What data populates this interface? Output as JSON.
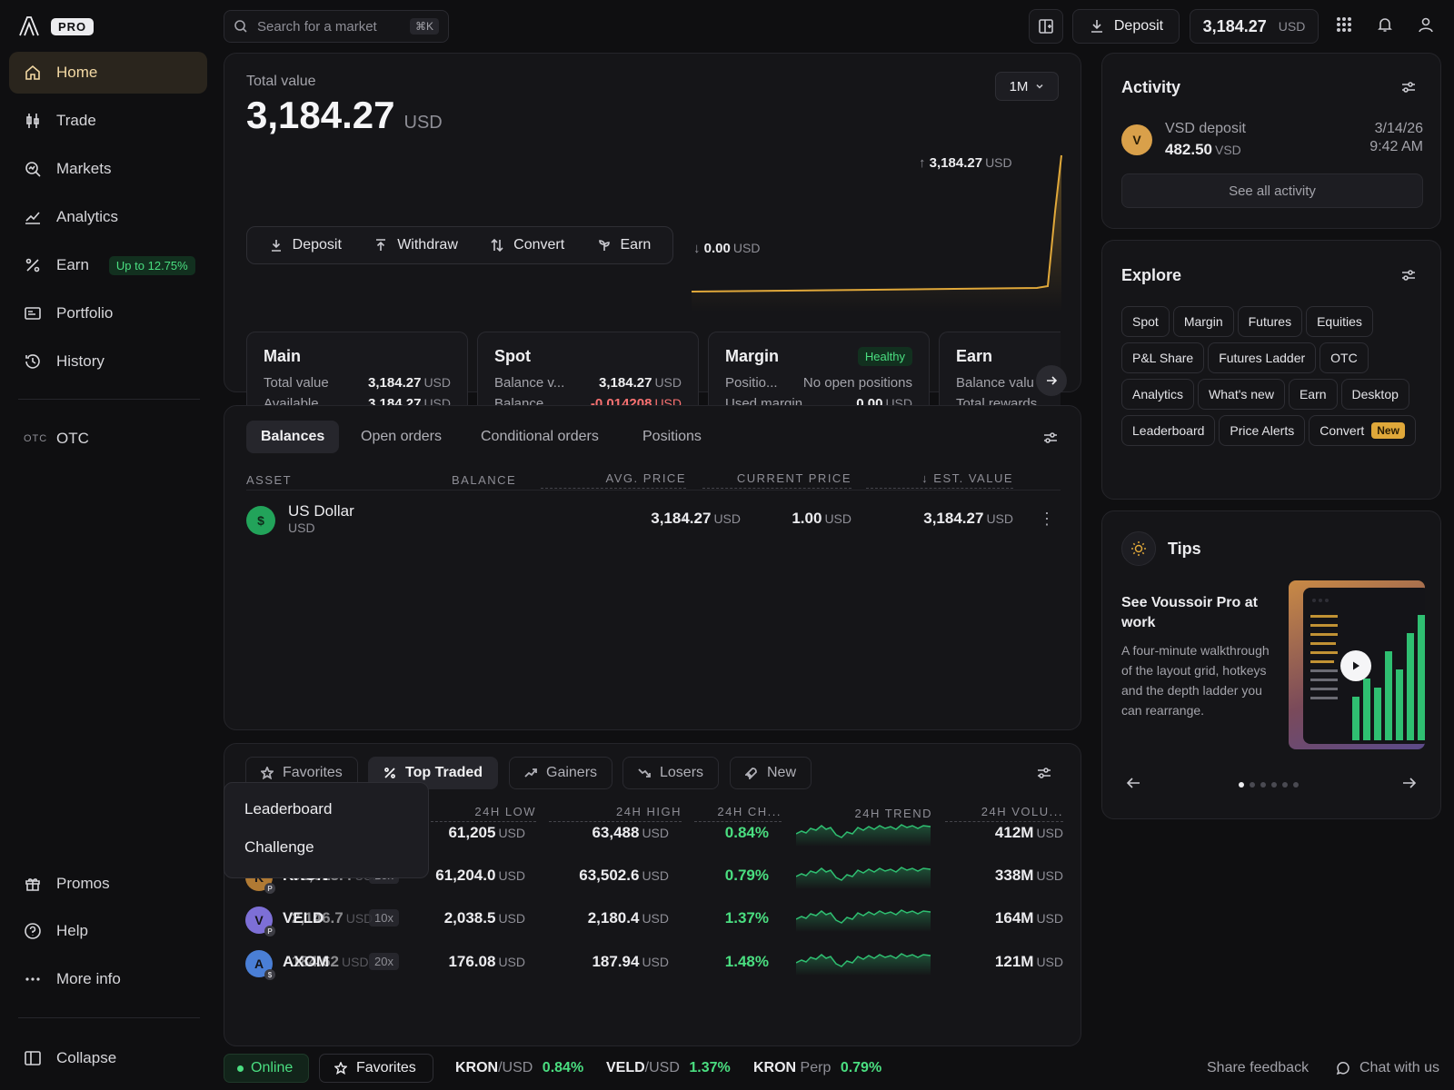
{
  "app": {
    "badge": "PRO"
  },
  "sidebar": {
    "items": [
      {
        "label": "Home",
        "icon": "home-icon",
        "active": true
      },
      {
        "label": "Trade",
        "icon": "candles-icon"
      },
      {
        "label": "Markets",
        "icon": "markets-icon"
      },
      {
        "label": "Analytics",
        "icon": "analytics-icon"
      },
      {
        "label": "Earn",
        "icon": "percent-icon",
        "badge": "Up to 12.75%"
      },
      {
        "label": "Portfolio",
        "icon": "portfolio-icon"
      },
      {
        "label": "History",
        "icon": "history-icon"
      }
    ],
    "otc": {
      "prefix": "OTC",
      "label": "OTC"
    },
    "bottom": [
      {
        "label": "Promos",
        "icon": "gift-icon"
      },
      {
        "label": "Help",
        "icon": "help-icon"
      },
      {
        "label": "More info",
        "icon": "more-icon"
      }
    ],
    "collapse": "Collapse"
  },
  "topbar": {
    "search_placeholder": "Search for a market",
    "shortcut": "⌘K",
    "deposit": "Deposit",
    "balance": "3,184.27",
    "balance_unit": "USD"
  },
  "overview": {
    "label": "Total value",
    "value": "3,184.27",
    "unit": "USD",
    "range": "1M",
    "chart_high": "3,184.27",
    "chart_low": "0.00",
    "chart_unit": "USD",
    "actions": [
      "Deposit",
      "Withdraw",
      "Convert",
      "Earn"
    ],
    "accounts": [
      {
        "name": "Main",
        "rows": [
          {
            "k": "Total value",
            "v": "3,184.27",
            "u": "USD"
          },
          {
            "k": "Available ...",
            "v": "3,184.27",
            "u": "USD"
          }
        ]
      },
      {
        "name": "Spot",
        "rows": [
          {
            "k": "Balance v...",
            "v": "3,184.27",
            "u": "USD"
          },
          {
            "k": "Balance...",
            "v": "-0.014208",
            "u": "USD"
          }
        ]
      },
      {
        "name": "Margin",
        "badge": "Healthy",
        "rows": [
          {
            "k": "Positio...",
            "v": "No open positions",
            "u": ""
          },
          {
            "k": "Used margin",
            "v": "0.00",
            "u": "USD"
          }
        ]
      },
      {
        "name": "Earn",
        "rows": [
          {
            "k": "Balance valu",
            "v": "",
            "u": ""
          },
          {
            "k": "Total rewards",
            "v": "",
            "u": ""
          }
        ]
      }
    ]
  },
  "balances": {
    "tabs": [
      "Balances",
      "Open orders",
      "Conditional orders",
      "Positions"
    ],
    "columns": [
      "ASSET",
      "BALANCE",
      "AVG. PRICE",
      "CURRENT PRICE",
      "↓ EST. VALUE"
    ],
    "rows": [
      {
        "icon": "$",
        "name": "US Dollar",
        "code": "USD",
        "balance": "3,184.27",
        "balance_unit": "USD",
        "avg": "-",
        "price": "1.00",
        "price_unit": "USD",
        "value": "3,184.27",
        "value_unit": "USD"
      }
    ]
  },
  "markets": {
    "tabs": [
      "Favorites",
      "Top Traded",
      "Gainers",
      "Losers",
      "New"
    ],
    "columns": [
      "24H LOW",
      "24H HIGH",
      "24H CH...",
      "24H TREND",
      "24H VOLU..."
    ],
    "rows": [
      {
        "avatar": "",
        "sub": "",
        "name": "",
        "low": "61,205",
        "high": "63,488",
        "change": "0.84%",
        "volume": "412M"
      },
      {
        "avatar": "K",
        "sub": "P",
        "name": "KRON",
        "overlay": "62,018.4",
        "lev": "10x",
        "low": "61,204.0",
        "high": "63,502.6",
        "change": "0.79%",
        "volume": "338M"
      },
      {
        "avatar": "V",
        "sub": "P",
        "name": "VELD",
        "overlay": "2,146.7",
        "lev": "10x",
        "low": "2,038.5",
        "high": "2,180.4",
        "change": "1.37%",
        "volume": "164M"
      },
      {
        "avatar": "A",
        "sub": "$",
        "name": "AXOM",
        "overlay": "184.62",
        "lev": "20x",
        "low": "176.08",
        "high": "187.94",
        "change": "1.48%",
        "volume": "121M"
      }
    ],
    "unit": "USD",
    "dropdown": [
      "Leaderboard",
      "Challenge"
    ]
  },
  "activity": {
    "title": "Activity",
    "item": {
      "avatar": "V",
      "title": "VSD deposit",
      "amount": "482.50",
      "unit": "VSD",
      "date": "3/14/26",
      "time": "9:42 AM"
    },
    "see_all": "See all activity"
  },
  "explore": {
    "title": "Explore",
    "chips": [
      "Spot",
      "Margin",
      "Futures",
      "Equities",
      "P&L Share",
      "Futures Ladder",
      "OTC",
      "Analytics",
      "What's new",
      "Earn",
      "Desktop",
      "Leaderboard",
      "Price Alerts",
      "Convert"
    ],
    "new_badge": "New"
  },
  "tips": {
    "title": "Tips",
    "heading": "See Voussoir Pro at work",
    "body": "A four-minute walkthrough of the layout grid, hotkeys and the depth ladder you can rearrange.",
    "pages": 6,
    "current_page": 1
  },
  "footer": {
    "status": "Online",
    "favorites": "Favorites",
    "tickers": [
      {
        "base": "KRON",
        "quote": "/USD",
        "change": "0.84%"
      },
      {
        "base": "VELD",
        "quote": "/USD",
        "change": "1.37%"
      },
      {
        "base": "KRON",
        "quote": " Perp",
        "change": "0.79%"
      }
    ],
    "feedback": "Share feedback",
    "chat": "Chat with us"
  },
  "colors": {
    "accent": "#f3d9a4",
    "positive": "#4ade80",
    "negative": "#f87171",
    "gold": "#e0a83a"
  }
}
